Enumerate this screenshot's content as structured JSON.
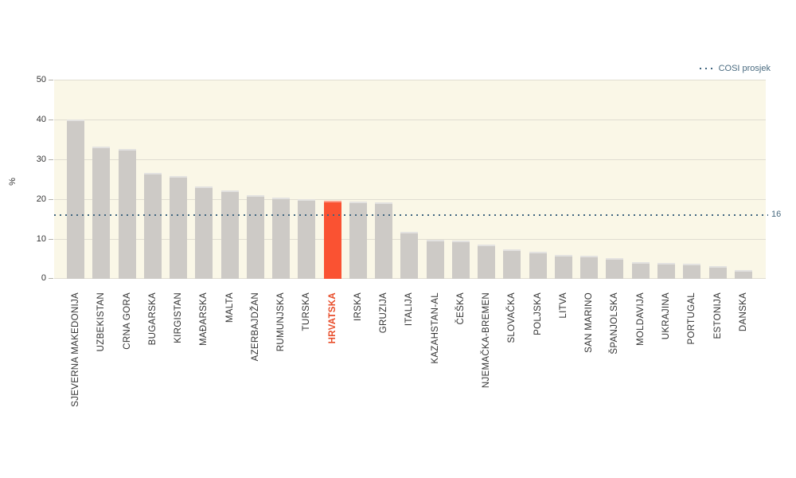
{
  "legend": {
    "cosi_label": "COSI prosjek"
  },
  "axis": {
    "y_title": "%"
  },
  "chart_data": {
    "type": "bar",
    "title": "",
    "xlabel": "",
    "ylabel": "%",
    "ylim": [
      0,
      50
    ],
    "yticks": [
      0,
      10,
      20,
      30,
      40,
      50
    ],
    "grid": true,
    "legend_entries": [
      {
        "label": "COSI prosjek",
        "style": "dotted-line",
        "position": "top-right"
      }
    ],
    "average_line": {
      "value": 16,
      "value_label": "16",
      "legend_label": "COSI prosjek"
    },
    "highlight_index": 10,
    "highlight_category": "HRVATSKA",
    "categories": [
      "SJEVERNA MAKEDONIJA",
      "UZBEKISTAN",
      "CRNA GORA",
      "BUGARSKA",
      "KIRGISTAN",
      "MAĐARSKA",
      "MALTA",
      "AZERBAJDŽAN",
      "RUMUNJSKA",
      "TURSKA",
      "HRVATSKA",
      "IRSKA",
      "GRUZIJA",
      "ITALIJA",
      "KAZAHSTAN-AL",
      "ČEŠKA",
      "NJEMAČKA-BREMEN",
      "SLOVAČKA",
      "POLJSKA",
      "LITVA",
      "SAN MARINO",
      "ŠPANJOLSKA",
      "MOLDAVIJA",
      "UKRAJINA",
      "PORTUGAL",
      "ESTONIJA",
      "DANSKA"
    ],
    "values": [
      40,
      33.2,
      32.6,
      26.6,
      25.8,
      23.2,
      22.3,
      21,
      20.5,
      20,
      19.7,
      19.5,
      19.2,
      11.9,
      9.8,
      9.6,
      8.6,
      7.5,
      6.8,
      6.1,
      5.8,
      5.3,
      4.3,
      4.1,
      3.9,
      3.3,
      2.2
    ]
  },
  "colors": {
    "background": "#FFFFFF",
    "plot_background": "#FAF7E7",
    "bar": "#CDCAC6",
    "bar_highlight": "#FA5232",
    "highlight_label": "#E84E2B",
    "average_line": "#3F657F",
    "legend_text": "#4A6B80",
    "axis_text": "#333333",
    "gridline": "#E0DDD1"
  }
}
